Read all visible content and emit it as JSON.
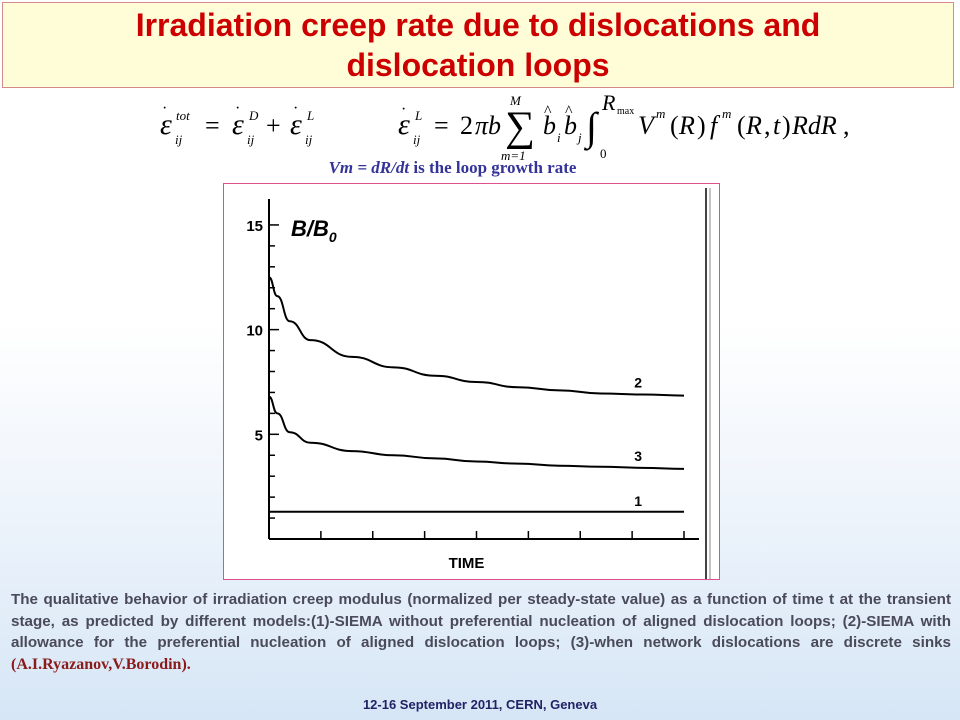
{
  "title": "Irradiation creep rate due to dislocations and dislocation loops",
  "subtitle": {
    "variable": "Vm = dR/dt",
    "text": " is the loop growth rate"
  },
  "chart_data": {
    "type": "line",
    "title": "B/B0",
    "xlabel": "TIME",
    "ylabel": "",
    "ylim": [
      0,
      16
    ],
    "yticks": [
      5,
      10,
      15
    ],
    "x_normalized_time": [
      0.0,
      0.02,
      0.05,
      0.1,
      0.2,
      0.3,
      0.4,
      0.5,
      0.6,
      0.7,
      0.8,
      0.9,
      1.0
    ],
    "series": [
      {
        "name": "1",
        "values": [
          1.3,
          1.3,
          1.3,
          1.3,
          1.3,
          1.3,
          1.3,
          1.3,
          1.3,
          1.3,
          1.3,
          1.3,
          1.3
        ]
      },
      {
        "name": "2",
        "values": [
          12.5,
          11.6,
          10.4,
          9.5,
          8.7,
          8.2,
          7.8,
          7.5,
          7.25,
          7.1,
          6.95,
          6.9,
          6.85
        ]
      },
      {
        "name": "3",
        "values": [
          6.8,
          6.0,
          5.1,
          4.6,
          4.2,
          4.0,
          3.85,
          3.7,
          3.6,
          3.5,
          3.45,
          3.4,
          3.35
        ]
      }
    ]
  },
  "caption": {
    "text": "The qualitative behavior of irradiation creep modulus (normalized per steady-state value) as a function of time t at the transient stage, as predicted by different models:(1)-SIEMA without preferential nucleation of aligned dislocation loops; (2)-SIEMA with allowance for the preferential nucleation of aligned dislocation loops; (3)-when network dislocations are discrete sinks ",
    "author": "(A.I.Ryazanov,V.Borodin)."
  },
  "footer": "12-16  September 2011, CERN, Geneva"
}
